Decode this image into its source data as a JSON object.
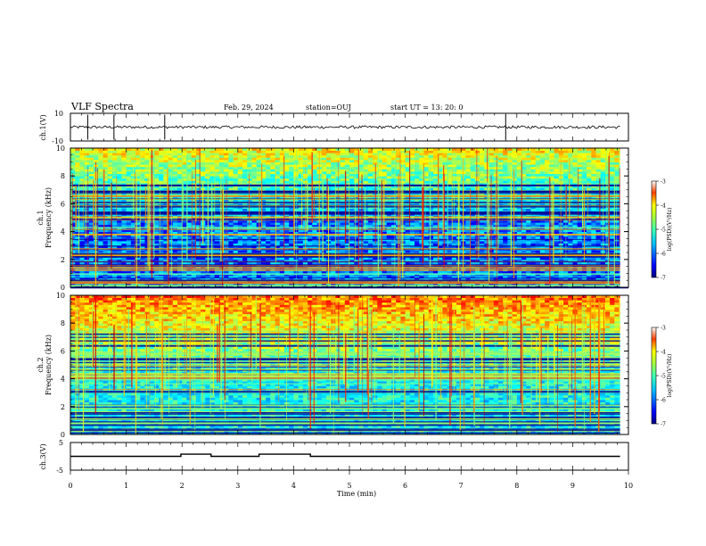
{
  "header": {
    "title": "VLF Spectra",
    "date": "Feb. 29, 2024",
    "station": "station=OUJ",
    "start": "start  UT  =   13: 20: 0"
  },
  "chart_data": [
    {
      "type": "line",
      "panel": "ch1-waveform",
      "ylabel": "ch.1(V)",
      "ylim": [
        -10,
        10
      ],
      "y_tick_labels": [
        "10",
        "-10"
      ],
      "baseline_v": 0,
      "noise_amplitude_v": 1,
      "impulse_times_min": [
        0.31,
        0.78,
        1.69,
        7.8
      ]
    },
    {
      "type": "heatmap",
      "panel": "ch1-spectrogram",
      "ylabel": "ch.1\nFrequency (kHz)",
      "ylim": [
        0,
        10
      ],
      "y_ticks": [
        0,
        2,
        4,
        6,
        8,
        10
      ],
      "colorbar": {
        "label": "log(PSD)(V²/Hz)",
        "range": [
          -7,
          -3
        ],
        "ticks": [
          -3,
          -4,
          -5,
          -6,
          -7
        ]
      },
      "mean_level_log_psd": -5.4
    },
    {
      "type": "heatmap",
      "panel": "ch2-spectrogram",
      "ylabel": "ch.2\nFrequency (kHz)",
      "ylim": [
        0,
        10
      ],
      "y_ticks": [
        0,
        2,
        4,
        6,
        8,
        10
      ],
      "colorbar": {
        "label": "log(PSD)(V²/Hz)",
        "range": [
          -7,
          -3
        ],
        "ticks": [
          -3,
          -4,
          -5,
          -6,
          -7
        ]
      },
      "mean_level_log_psd": -4.8
    },
    {
      "type": "line",
      "panel": "ch3-status",
      "ylabel": "ch.3(V)",
      "ylim": [
        -5,
        5
      ],
      "y_tick_labels": [
        "5",
        "-5"
      ],
      "baseline_v": 0,
      "high_v": 0.8,
      "high_intervals_min": [
        [
          1.98,
          2.52
        ],
        [
          3.38,
          4.3
        ]
      ]
    }
  ],
  "x_axis": {
    "label": "Time  (min)",
    "xlim": [
      0,
      10
    ],
    "ticks": [
      "0",
      "1",
      "2",
      "3",
      "4",
      "5",
      "6",
      "7",
      "8",
      "9",
      "10"
    ]
  },
  "colors": {
    "colormap": [
      "#00007f",
      "#0000ff",
      "#00a0ff",
      "#00ffff",
      "#80ff80",
      "#ffff00",
      "#ff8000",
      "#ff0000",
      "#7f0000"
    ],
    "trace": "#000000"
  }
}
